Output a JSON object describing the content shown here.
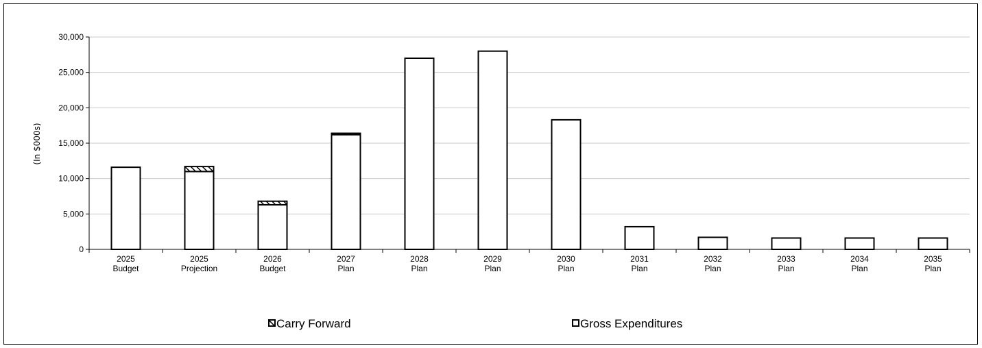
{
  "chart_data": {
    "type": "bar",
    "stacked": true,
    "ylabel": "(In $000s)",
    "ylim": [
      0,
      30000
    ],
    "yticks": [
      "0",
      "5,000",
      "10,000",
      "15,000",
      "20,000",
      "25,000",
      "30,000"
    ],
    "categories": [
      [
        "2025",
        "Budget"
      ],
      [
        "2025",
        "Projection"
      ],
      [
        "2026",
        "Budget"
      ],
      [
        "2027",
        "Plan"
      ],
      [
        "2028",
        "Plan"
      ],
      [
        "2029",
        "Plan"
      ],
      [
        "2030",
        "Plan"
      ],
      [
        "2031",
        "Plan"
      ],
      [
        "2032",
        "Plan"
      ],
      [
        "2033",
        "Plan"
      ],
      [
        "2034",
        "Plan"
      ],
      [
        "2035",
        "Plan"
      ]
    ],
    "series": [
      {
        "name": "Gross Expenditures",
        "values": [
          11600,
          11000,
          6300,
          16200,
          27000,
          28000,
          18300,
          3200,
          1700,
          1600,
          1600,
          1600
        ]
      },
      {
        "name": "Carry Forward",
        "values": [
          0,
          700,
          500,
          200,
          0,
          0,
          0,
          0,
          0,
          0,
          0,
          0
        ]
      }
    ],
    "grid": true,
    "legend_position": "bottom",
    "colors": {
      "bar_fill": "#ffffff",
      "bar_stroke": "#000000",
      "grid": "#c8c8c8",
      "hatch": "#000000"
    }
  }
}
